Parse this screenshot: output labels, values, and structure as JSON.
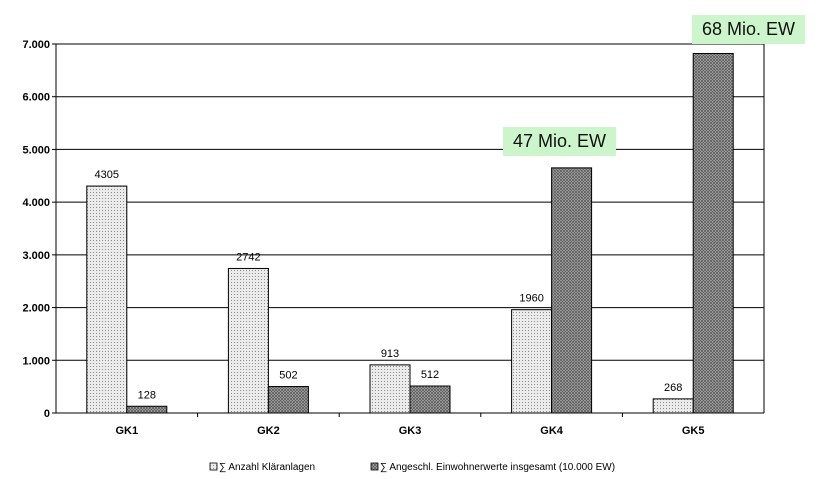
{
  "chart_data": {
    "type": "bar",
    "categories": [
      "GK1",
      "GK2",
      "GK3",
      "GK4",
      "GK5"
    ],
    "series": [
      {
        "name": "∑ Anzahl Kläranlagen",
        "values": [
          4305,
          2742,
          913,
          1960,
          268
        ],
        "data_labels": [
          "4305",
          "2742",
          "913",
          "1960",
          "268"
        ],
        "pattern": "light-dotted"
      },
      {
        "name": "∑ Angeschl. Einwohnerwerte insgesamt (10.000 EW)",
        "values": [
          128,
          502,
          512,
          4650,
          6820
        ],
        "data_labels": [
          "128",
          "502",
          "512",
          "",
          ""
        ],
        "pattern": "dark-crosshatch"
      }
    ],
    "ylim": [
      0,
      7000
    ],
    "yticks": [
      0,
      1000,
      2000,
      3000,
      4000,
      5000,
      6000,
      7000
    ],
    "ytick_labels": [
      "0",
      "1.000",
      "2.000",
      "3.000",
      "4.000",
      "5.000",
      "6.000",
      "7.000"
    ],
    "grid": true,
    "legend_position": "bottom",
    "annotations": [
      {
        "category": "GK4",
        "text": "47 Mio. EW"
      },
      {
        "category": "GK5",
        "text": "68 Mio. EW"
      }
    ],
    "colors": {
      "callout_bg": "#ccf5cc",
      "grid": "#000000",
      "bar_outline": "#000000"
    }
  }
}
